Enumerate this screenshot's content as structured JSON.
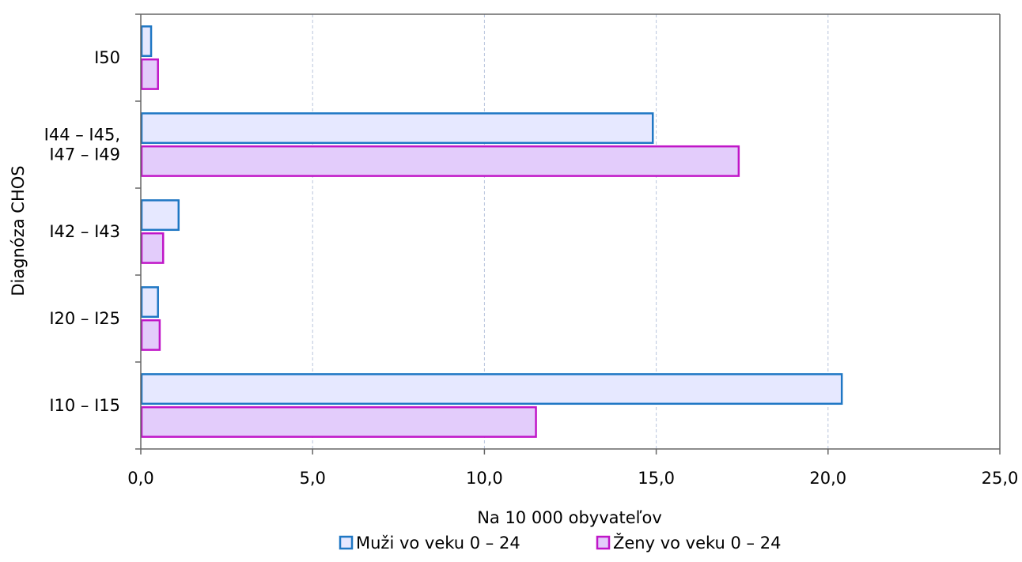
{
  "chart_data": {
    "type": "bar",
    "orientation": "horizontal",
    "categories": [
      "I10 – I15",
      "I20 – I25",
      "I42 – I43",
      "I44 – I45,\nI47 – I49",
      "I50"
    ],
    "series": [
      {
        "name": "Muži vo veku 0 – 24",
        "values": [
          20.4,
          0.5,
          1.1,
          14.9,
          0.3
        ],
        "stroke": "#1f77c4",
        "fill": "#e6e8ff"
      },
      {
        "name": "Ženy vo veku 0 – 24",
        "values": [
          11.5,
          0.55,
          0.65,
          17.4,
          0.5
        ],
        "stroke": "#c016c8",
        "fill": "#e3ccfb"
      }
    ],
    "xlabel": "Na 10 000 obyvateľov",
    "ylabel": "Diagnóza CHOS",
    "xlim": [
      0,
      25
    ],
    "xticks": [
      0,
      5,
      10,
      15,
      20,
      25
    ],
    "xtick_labels": [
      "0,0",
      "5,0",
      "10,0",
      "15,0",
      "20,0",
      "25,0"
    ],
    "grid": "vertical dashed",
    "legend": "bottom"
  },
  "colors": {
    "axis": "#666666",
    "grid": "#b8c4dc"
  }
}
